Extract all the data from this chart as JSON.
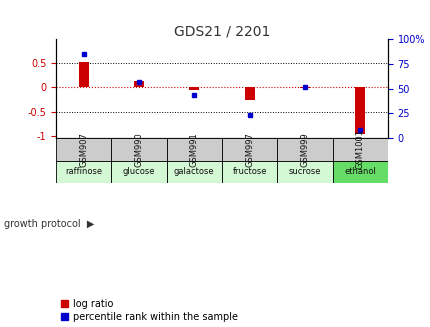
{
  "title": "GDS21 / 2201",
  "samples": [
    "GSM907",
    "GSM990",
    "GSM991",
    "GSM997",
    "GSM999",
    "GSM1001"
  ],
  "protocols": [
    "raffinose",
    "glucose",
    "galactose",
    "fructose",
    "sucrose",
    "ethanol"
  ],
  "proto_colors": [
    "#d4f7d4",
    "#d4f7d4",
    "#d4f7d4",
    "#d4f7d4",
    "#d4f7d4",
    "#66dd66"
  ],
  "log_ratio": [
    0.53,
    0.13,
    -0.05,
    -0.25,
    -0.01,
    -0.97
  ],
  "percentile_rank": [
    85,
    57,
    44,
    23,
    52,
    8
  ],
  "bar_color_red": "#cc0000",
  "bar_color_blue": "#0000cc",
  "bg_color": "#ffffff",
  "left_yticks": [
    -1,
    -0.5,
    0,
    0.5
  ],
  "left_yticklabels": [
    "-1",
    "-0.5",
    "0",
    "0.5"
  ],
  "right_yticks": [
    0,
    25,
    50,
    75,
    100
  ],
  "right_yticklabels": [
    "0",
    "25",
    "50",
    "75",
    "100%"
  ],
  "left_ylim": [
    -1.05,
    1.0
  ],
  "right_ylim": [
    0,
    100
  ],
  "ylabel_left_color": "#cc0000",
  "ylabel_right_color": "#0000cc",
  "zero_line_color": "#cc0000",
  "grid_color": "#000000",
  "sample_bg": "#cccccc",
  "bar_width": 0.18,
  "legend_red_label": "log ratio",
  "legend_blue_label": "percentile rank within the sample"
}
